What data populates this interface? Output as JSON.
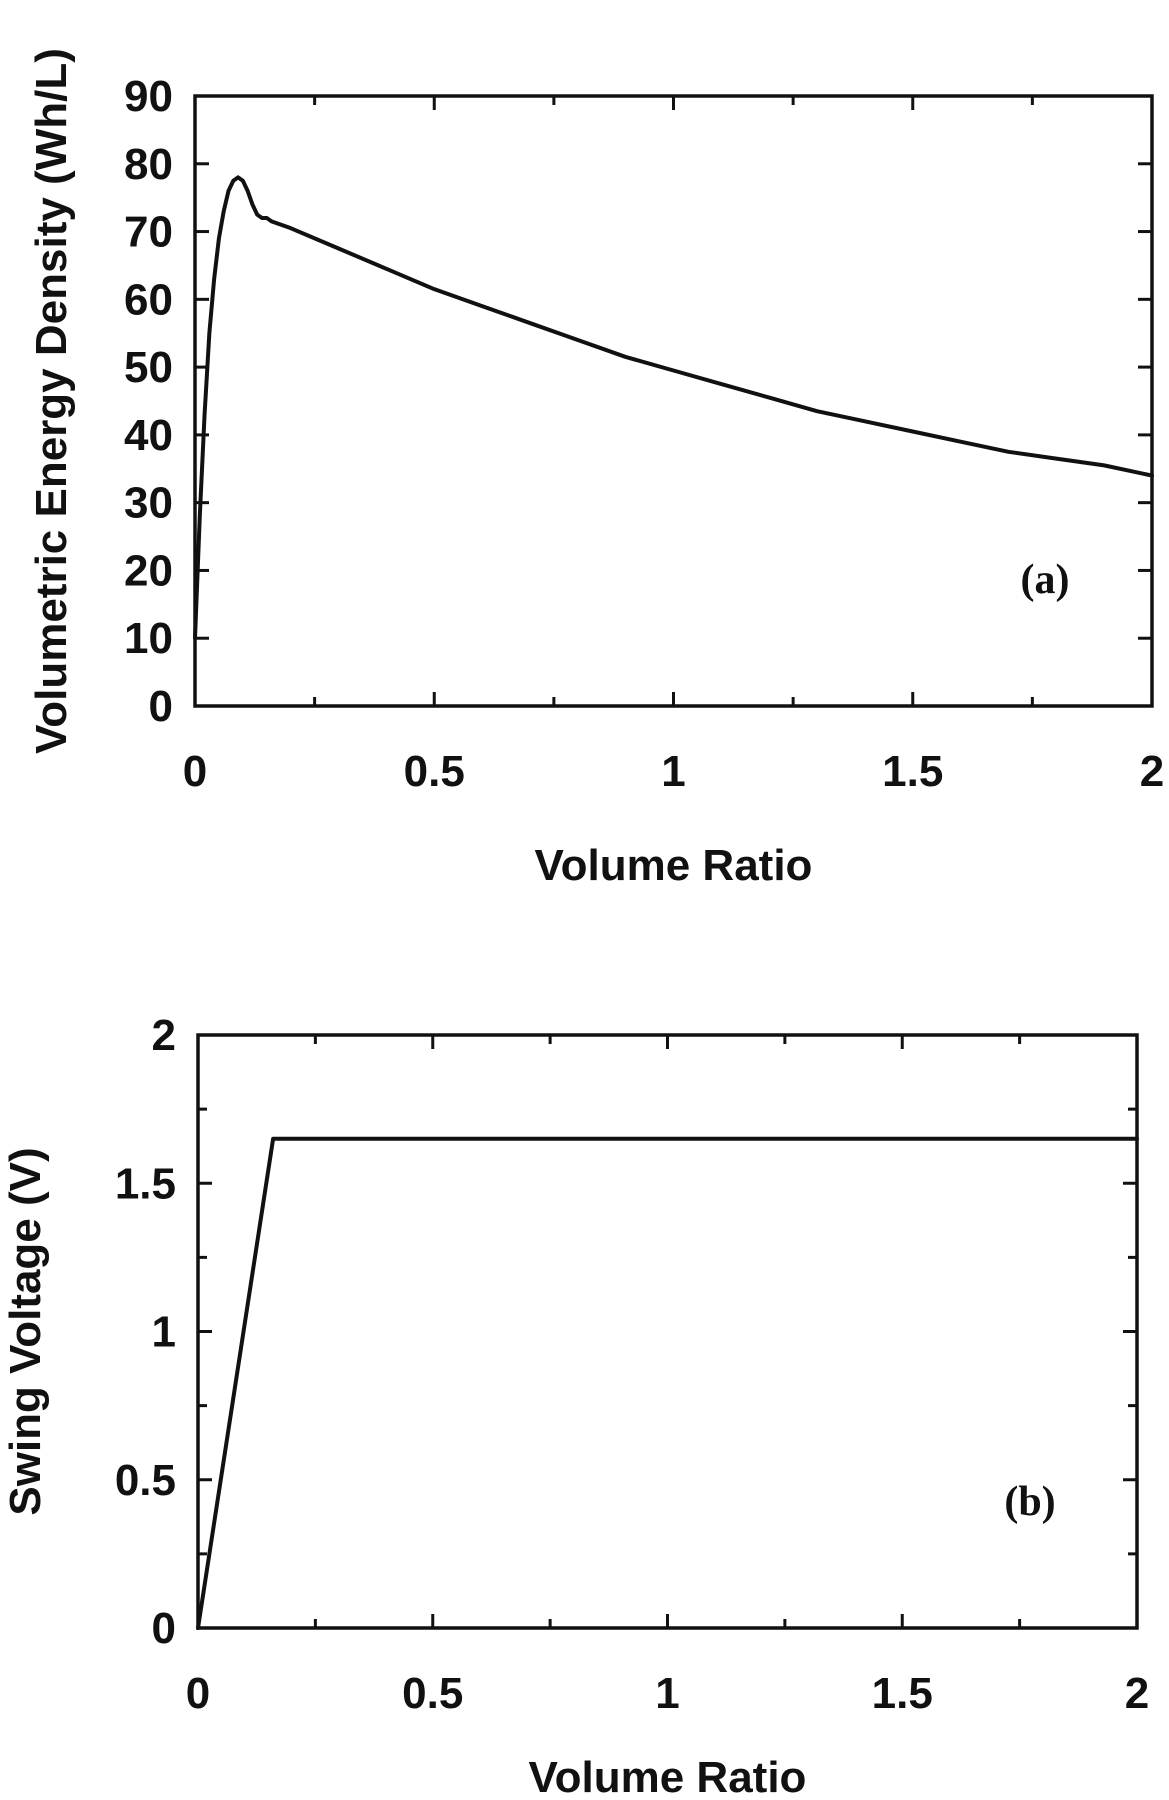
{
  "chart_data": [
    {
      "type": "line",
      "panel": "a",
      "annotation": "(a)",
      "xlabel": "Volume Ratio",
      "ylabel": "Volumetric Energy Density (Wh/L)",
      "xlim": [
        0,
        2
      ],
      "ylim": [
        0,
        90
      ],
      "xticks": [
        0,
        0.5,
        1,
        1.5,
        2
      ],
      "xtick_labels": [
        "0",
        "0.5",
        "1",
        "1.5",
        "2"
      ],
      "yticks": [
        0,
        10,
        20,
        30,
        40,
        50,
        60,
        70,
        80,
        90
      ],
      "ytick_labels": [
        "0",
        "10",
        "20",
        "30",
        "40",
        "50",
        "60",
        "70",
        "80",
        "90"
      ],
      "x_minor_step": 0.25,
      "grid": false,
      "series": [
        {
          "x": [
            0,
            0.01,
            0.02,
            0.03,
            0.04,
            0.05,
            0.06,
            0.07,
            0.08,
            0.09,
            0.1,
            0.11,
            0.12,
            0.13,
            0.14,
            0.15,
            0.16,
            0.2,
            0.3,
            0.4,
            0.5,
            0.6,
            0.7,
            0.8,
            0.9,
            1.0,
            1.1,
            1.2,
            1.3,
            1.4,
            1.5,
            1.6,
            1.7,
            1.8,
            1.9,
            2.0
          ],
          "y": [
            10,
            28,
            43,
            55,
            63,
            69,
            73,
            76,
            77.5,
            78,
            77.5,
            76,
            74,
            72.5,
            72,
            72,
            71.5,
            70.5,
            67.5,
            64.5,
            61.5,
            59,
            56.5,
            54,
            51.5,
            49.5,
            47.5,
            45.5,
            43.5,
            42,
            40.5,
            39,
            37.5,
            36.5,
            35.5,
            34
          ]
        }
      ]
    },
    {
      "type": "line",
      "panel": "b",
      "annotation": "(b)",
      "xlabel": "Volume Ratio",
      "ylabel": "Swing Voltage (V)",
      "xlim": [
        0,
        2
      ],
      "ylim": [
        0,
        2
      ],
      "xticks": [
        0,
        0.5,
        1,
        1.5,
        2
      ],
      "xtick_labels": [
        "0",
        "0.5",
        "1",
        "1.5",
        "2"
      ],
      "yticks": [
        0,
        0.5,
        1,
        1.5,
        2
      ],
      "ytick_labels": [
        "0",
        "0.5",
        "1",
        "1.5",
        "2"
      ],
      "x_minor_step": 0.25,
      "y_minor_step": 0.25,
      "grid": false,
      "series": [
        {
          "x": [
            0,
            0.16,
            2.0
          ],
          "y": [
            0,
            1.65,
            1.65
          ]
        }
      ]
    }
  ]
}
